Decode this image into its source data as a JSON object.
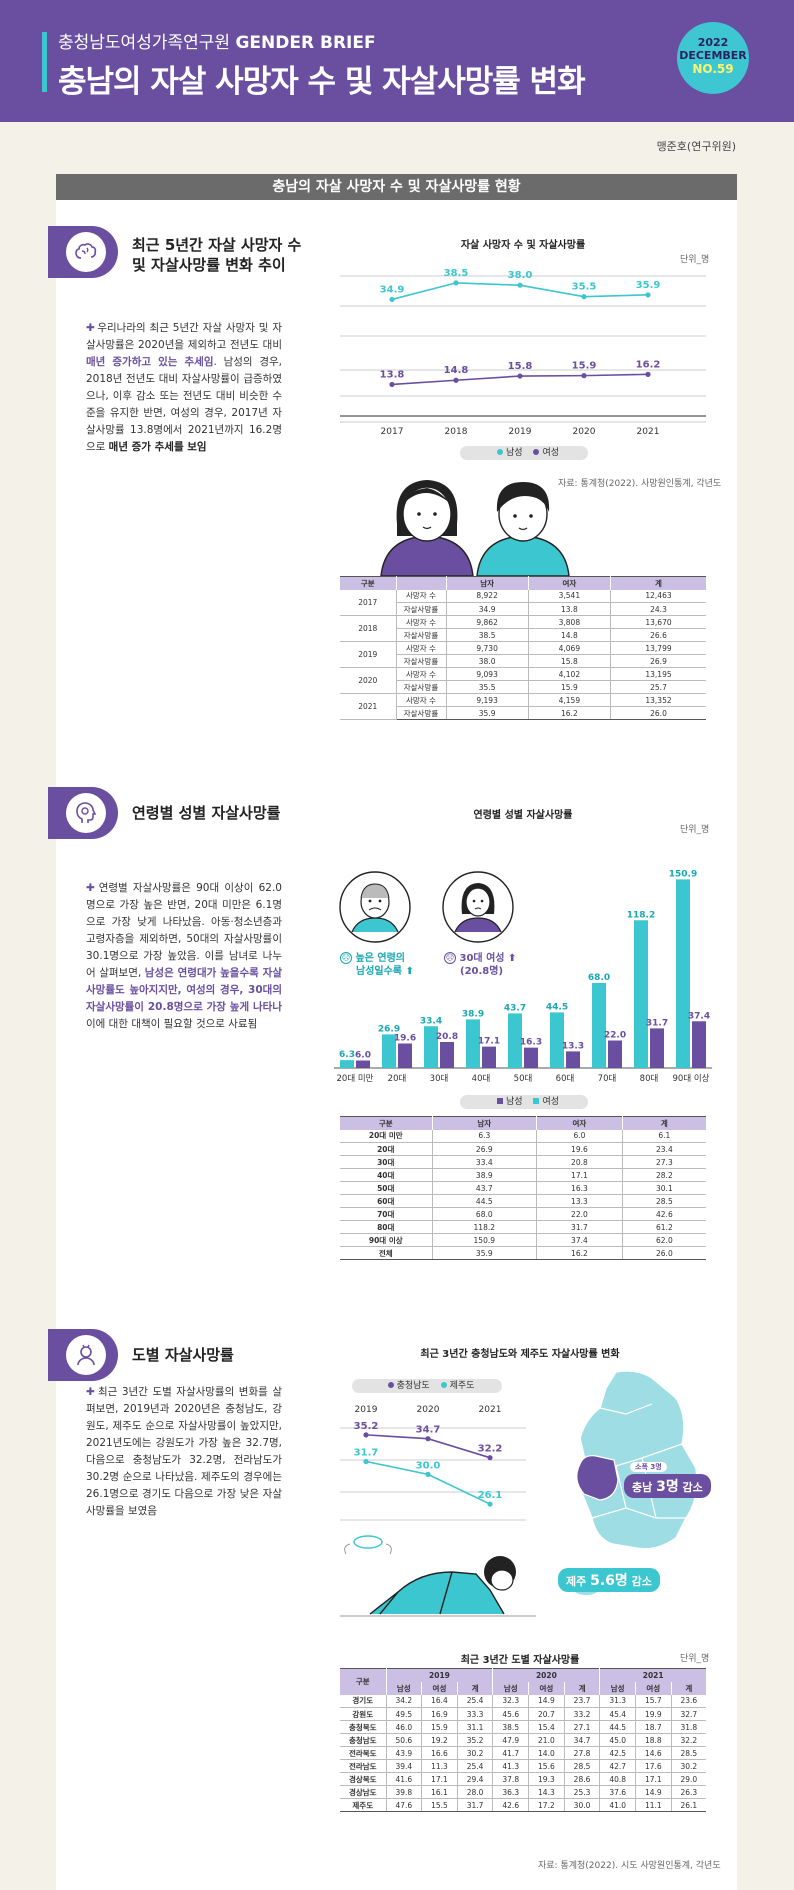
{
  "header": {
    "org": "충청남도여성가족연구원",
    "brand": "GENDER BRIEF",
    "title": "충남의 자살 사망자 수 및 자살사망률 변화",
    "badge_year": "2022",
    "badge_month": "DECEMBER",
    "badge_no": "NO.59"
  },
  "author": "맹준호(연구위원)",
  "panel_title": "충남의 자살 사망자 수 및 자살사망률 현황",
  "section1": {
    "title_line1": "최근 5년간 자살 사망자 수",
    "title_line2": "및 자살사망률 변화 추이",
    "text_a": "우리나라의 최근 5년간 자살 사망자 및 자살사망률은 2020년을 제외하고 전년도 대비 ",
    "text_hl": "매년 증가하고 있는 추세임",
    "text_b": ". 남성의 경우, 2018년 전년도 대비 자살사망률이 급증하였으나, 이후 감소 또는 전년도 대비 비슷한 수준을 유지한 반면, 여성의 경우, 2017년 자살사망률 13.8명에서 2021년까지 16.2명으로 ",
    "text_bold": "매년 증가 추세를 보임",
    "chart_title": "자살 사망자 수 및 자살사망률",
    "unit": "단위_명",
    "legend_male": "남성",
    "legend_female": "여성",
    "source": "자료: 통계청(2022). 사망원인통계, 각년도",
    "table_headers": [
      "구분",
      "",
      "남자",
      "여자",
      "계"
    ],
    "table_rows": [
      {
        "year": "2017",
        "l1": "사망자 수",
        "m1": "8,922",
        "f1": "3,541",
        "t1": "12,463",
        "l2": "자살사망률",
        "m2": "34.9",
        "f2": "13.8",
        "t2": "24.3"
      },
      {
        "year": "2018",
        "l1": "사망자 수",
        "m1": "9,862",
        "f1": "3,808",
        "t1": "13,670",
        "l2": "자살사망률",
        "m2": "38.5",
        "f2": "14.8",
        "t2": "26.6"
      },
      {
        "year": "2019",
        "l1": "사망자 수",
        "m1": "9,730",
        "f1": "4,069",
        "t1": "13,799",
        "l2": "자살사망률",
        "m2": "38.0",
        "f2": "15.8",
        "t2": "26.9"
      },
      {
        "year": "2020",
        "l1": "사망자 수",
        "m1": "9,093",
        "f1": "4,102",
        "t1": "13,195",
        "l2": "자살사망률",
        "m2": "35.5",
        "f2": "15.9",
        "t2": "25.7"
      },
      {
        "year": "2021",
        "l1": "사망자 수",
        "m1": "9,193",
        "f1": "4,159",
        "t1": "13,352",
        "l2": "자살사망률",
        "m2": "35.9",
        "f2": "16.2",
        "t2": "26.0"
      }
    ]
  },
  "section2": {
    "title": "연령별 성별 자살사망률",
    "text_a": "연령별 자살사망률은 90대 이상이 62.0명으로 가장 높은 반면, 20대 미만은 6.1명으로 가장 낮게 나타났음. 아동·청소년층과 고령자층을 제외하면, 50대의 자살사망률이 30.1명으로 가장 높았음. 이를 남녀로 나누어 살펴보면, ",
    "text_hl": "남성은 연령대가 높을수록 자살사망률도 높아지지만, 여성의 경우, 30대의 자살사망률이 20.8명으로 가장 높게 나타나",
    "text_b": " 이에 대한 대책이 필요할 것으로 사료됨",
    "chart_title": "연령별 성별 자살사망률",
    "unit": "단위_명",
    "callout_old_1": "높은 연령의",
    "callout_old_2": "남성일수록",
    "callout_female_1": "30대 여성",
    "callout_female_2": "(20.8명)",
    "legend_male": "남성",
    "legend_female": "여성",
    "table_headers": [
      "구분",
      "남자",
      "여자",
      "계"
    ],
    "table_rows": [
      [
        "20대 미만",
        "6.3",
        "6.0",
        "6.1"
      ],
      [
        "20대",
        "26.9",
        "19.6",
        "23.4"
      ],
      [
        "30대",
        "33.4",
        "20.8",
        "27.3"
      ],
      [
        "40대",
        "38.9",
        "17.1",
        "28.2"
      ],
      [
        "50대",
        "43.7",
        "16.3",
        "30.1"
      ],
      [
        "60대",
        "44.5",
        "13.3",
        "28.5"
      ],
      [
        "70대",
        "68.0",
        "22.0",
        "42.6"
      ],
      [
        "80대",
        "118.2",
        "31.7",
        "61.2"
      ],
      [
        "90대 이상",
        "150.9",
        "37.4",
        "62.0"
      ],
      [
        "전체",
        "35.9",
        "16.2",
        "26.0"
      ]
    ]
  },
  "section3": {
    "title": "도별 자살사망률",
    "text": "최근 3년간 도별 자살사망률의 변화를 살펴보면, 2019년과 2020년은 충청남도, 강원도, 제주도 순으로 자살사망률이 높았지만, 2021년도에는 강원도가 가장 높은 32.7명, 다음으로 충청남도가 32.2명, 전라남도가 30.2명 순으로 나타났음. 제주도의 경우에는 26.1명으로 경기도 다음으로 가장 낮은 자살사망률을 보였음",
    "chart_title": "최근 3년간 충청남도와 제주도 자살사망률 변화",
    "legend_cn": "충청남도",
    "legend_jj": "제주도",
    "map_tag": "소폭 3명",
    "map_cn_a": "충남 ",
    "map_cn_b": "3명",
    "map_cn_c": " 감소",
    "map_jj_a": "제주 ",
    "map_jj_b": "5.6명",
    "map_jj_c": " 감소",
    "table_title": "최근 3년간 도별 자살사망률",
    "unit": "단위_명",
    "source": "자료: 통계청(2022). 시도 사망원인통계, 각년도",
    "table_h1": [
      "구분",
      "2019",
      "2020",
      "2021"
    ],
    "table_h2": [
      "남성",
      "여성",
      "계",
      "남성",
      "여성",
      "계",
      "남성",
      "여성",
      "계"
    ],
    "table_rows": [
      [
        "경기도",
        "34.2",
        "16.4",
        "25.4",
        "32.3",
        "14.9",
        "23.7",
        "31.3",
        "15.7",
        "23.6"
      ],
      [
        "강원도",
        "49.5",
        "16.9",
        "33.3",
        "45.6",
        "20.7",
        "33.2",
        "45.4",
        "19.9",
        "32.7"
      ],
      [
        "충청북도",
        "46.0",
        "15.9",
        "31.1",
        "38.5",
        "15.4",
        "27.1",
        "44.5",
        "18.7",
        "31.8"
      ],
      [
        "충청남도",
        "50.6",
        "19.2",
        "35.2",
        "47.9",
        "21.0",
        "34.7",
        "45.0",
        "18.8",
        "32.2"
      ],
      [
        "전라북도",
        "43.9",
        "16.6",
        "30.2",
        "41.7",
        "14.0",
        "27.8",
        "42.5",
        "14.6",
        "28.5"
      ],
      [
        "전라남도",
        "39.4",
        "11.3",
        "25.4",
        "41.3",
        "15.6",
        "28.5",
        "42.7",
        "17.6",
        "30.2"
      ],
      [
        "경상북도",
        "41.6",
        "17.1",
        "29.4",
        "37.8",
        "19.3",
        "28.6",
        "40.8",
        "17.1",
        "29.0"
      ],
      [
        "경상남도",
        "39.8",
        "16.1",
        "28.0",
        "36.3",
        "14.3",
        "25.3",
        "37.6",
        "14.9",
        "26.3"
      ],
      [
        "제주도",
        "47.6",
        "15.5",
        "31.7",
        "42.6",
        "17.2",
        "30.0",
        "41.0",
        "11.1",
        "26.1"
      ]
    ]
  },
  "chart_data": [
    {
      "type": "line",
      "title": "자살 사망자 수 및 자살사망률",
      "categories": [
        "2017",
        "2018",
        "2019",
        "2020",
        "2021"
      ],
      "series": [
        {
          "name": "남성",
          "values": [
            34.9,
            38.5,
            38.0,
            35.5,
            35.9
          ]
        },
        {
          "name": "여성",
          "values": [
            13.8,
            14.8,
            15.8,
            15.9,
            16.2
          ]
        }
      ],
      "legend": "bottom",
      "colors": {
        "male": "#3cc6cf",
        "female": "#6a4fa0"
      }
    },
    {
      "type": "bar",
      "title": "연령별 성별 자살사망률",
      "categories": [
        "20대 미만",
        "20대",
        "30대",
        "40대",
        "50대",
        "60대",
        "70대",
        "80대",
        "90대 이상"
      ],
      "series": [
        {
          "name": "남성",
          "values": [
            6.3,
            26.9,
            33.4,
            38.9,
            43.7,
            44.5,
            68.0,
            118.2,
            150.9
          ]
        },
        {
          "name": "여성",
          "values": [
            6.0,
            19.6,
            20.8,
            17.1,
            16.3,
            13.3,
            22.0,
            31.7,
            37.4
          ]
        }
      ],
      "ylim": [
        0,
        160
      ],
      "legend": "bottom",
      "colors": {
        "male": "#3cc6cf",
        "female": "#6a4fa0"
      }
    },
    {
      "type": "line",
      "title": "최근 3년간 충청남도와 제주도 자살사망률 변화",
      "categories": [
        "2019",
        "2020",
        "2021"
      ],
      "series": [
        {
          "name": "충청남도",
          "values": [
            35.2,
            34.7,
            32.2
          ]
        },
        {
          "name": "제주도",
          "values": [
            31.7,
            30.0,
            26.1
          ]
        }
      ],
      "legend": "top",
      "colors": {
        "cn": "#6a4fa0",
        "jj": "#3cc6cf"
      }
    }
  ]
}
